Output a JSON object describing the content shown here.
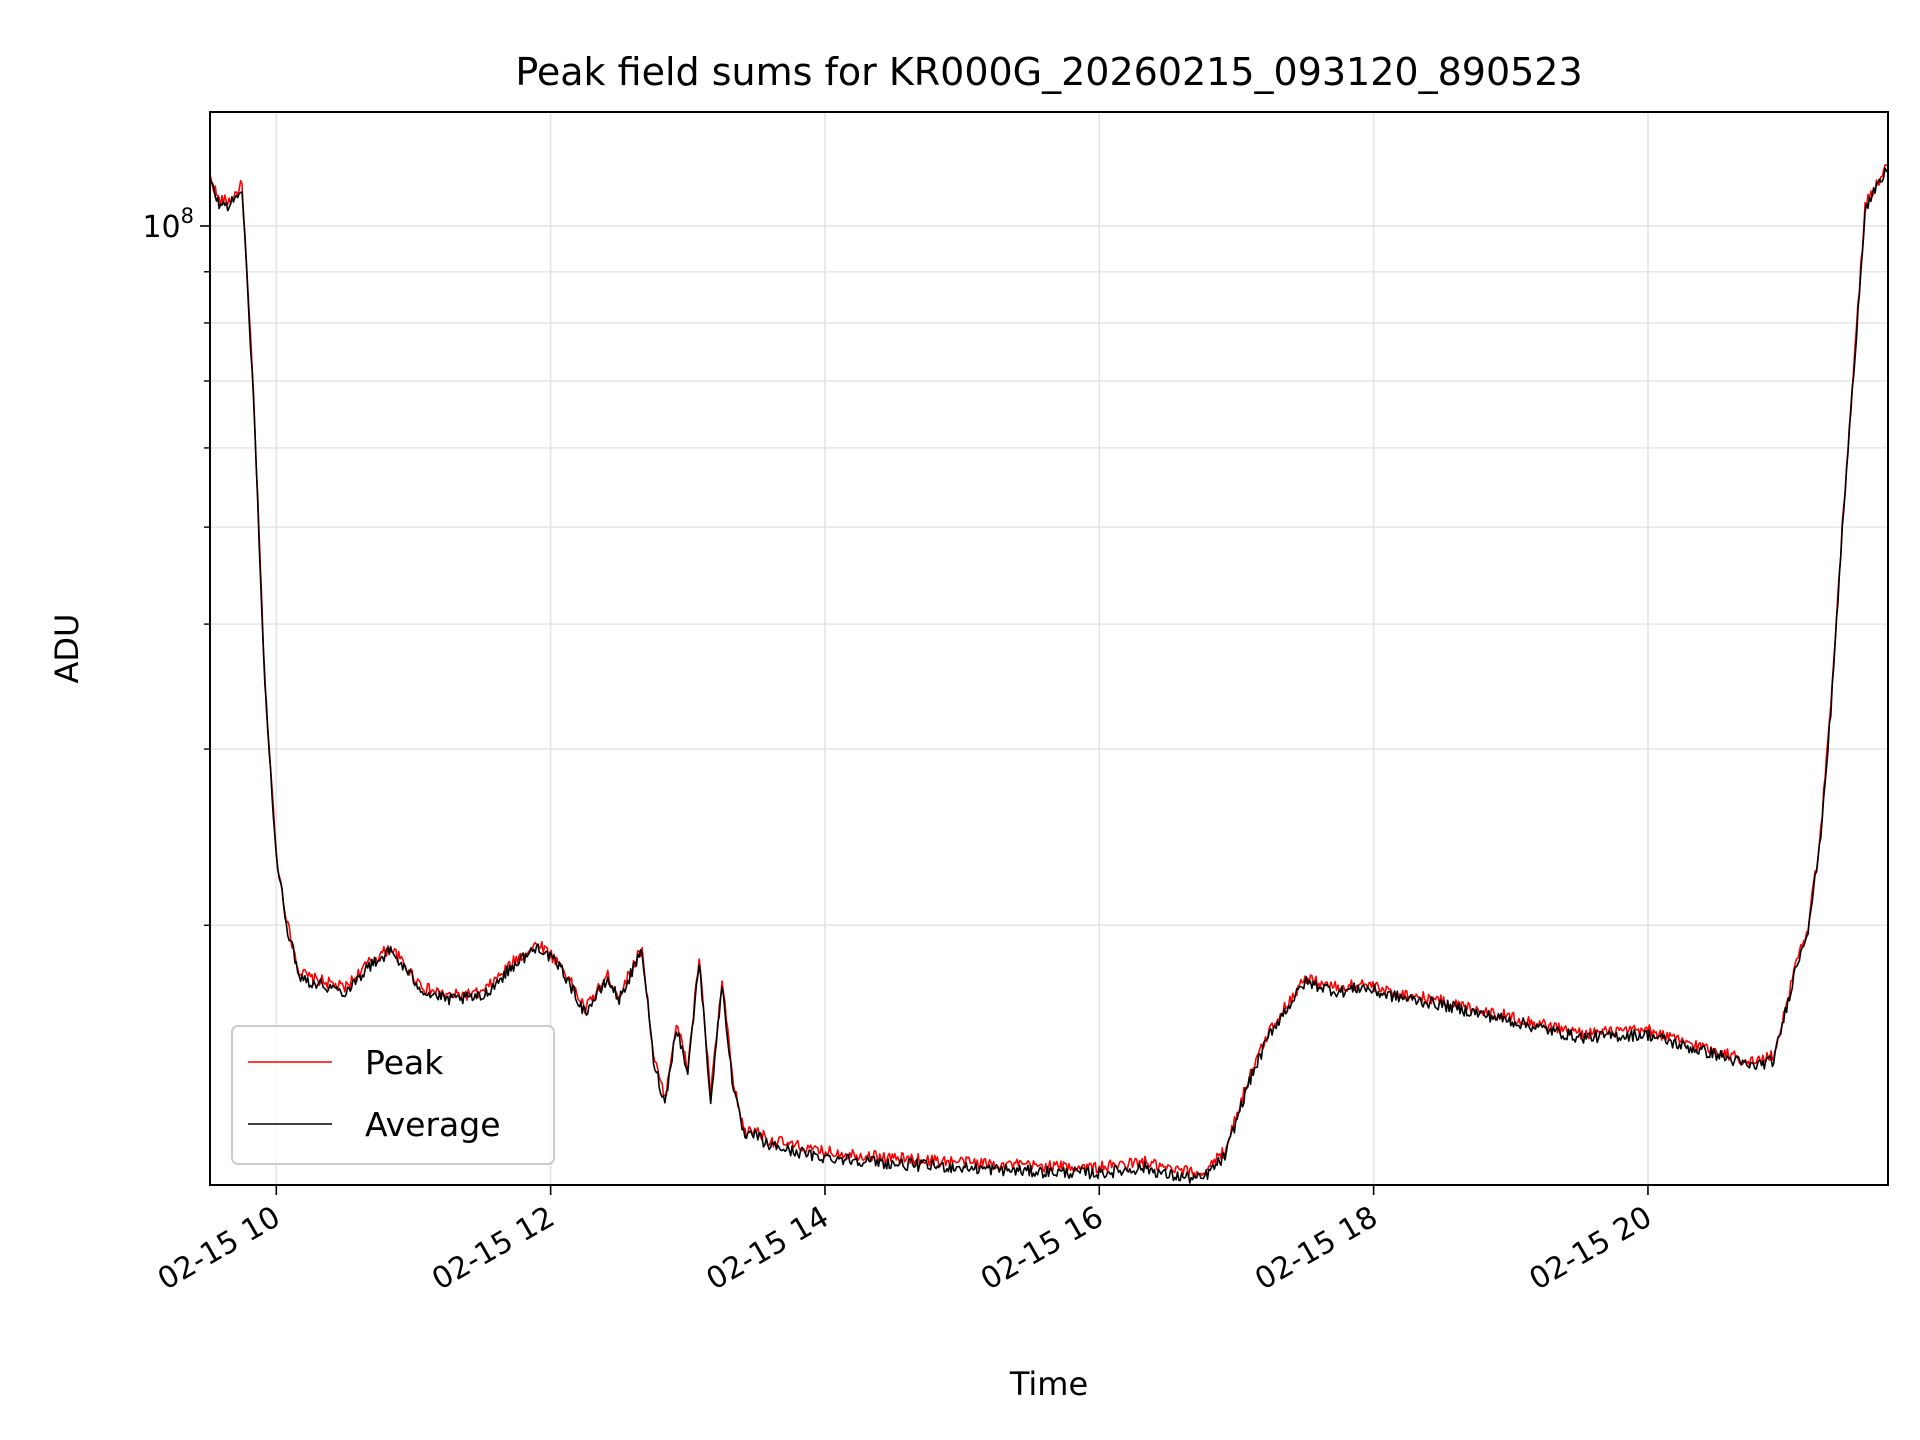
{
  "chart_data": {
    "type": "line",
    "title": "Peak field sums for KR000G_20260215_093120_890523",
    "xlabel": "Time",
    "ylabel": "ADU",
    "y_scale": "log",
    "grid": true,
    "legend_position": "lower-left",
    "xlim": [
      "02-15 09:31",
      "02-15 21:45"
    ],
    "ylim": [
      11000000,
      130000000
    ],
    "x_ticks": [
      "02-15 10",
      "02-15 12",
      "02-15 14",
      "02-15 16",
      "02-15 18",
      "02-15 20"
    ],
    "y_tick_major": {
      "value": 100000000,
      "base": "10",
      "exponent": "8"
    },
    "y_minor_ticks": [
      20000000,
      30000000,
      40000000,
      50000000,
      60000000,
      70000000,
      80000000,
      90000000
    ],
    "series": [
      {
        "name": "Peak",
        "color": "#ff0000",
        "x": [
          "02-15 09:31",
          "02-15 09:35",
          "02-15 09:40",
          "02-15 09:45",
          "02-15 09:50",
          "02-15 09:55",
          "02-15 10:00",
          "02-15 10:05",
          "02-15 10:10",
          "02-15 10:15",
          "02-15 10:20",
          "02-15 10:30",
          "02-15 10:40",
          "02-15 10:50",
          "02-15 11:00",
          "02-15 11:05",
          "02-15 11:15",
          "02-15 11:30",
          "02-15 11:45",
          "02-15 11:55",
          "02-15 12:05",
          "02-15 12:15",
          "02-15 12:25",
          "02-15 12:30",
          "02-15 12:35",
          "02-15 12:40",
          "02-15 12:45",
          "02-15 12:50",
          "02-15 12:55",
          "02-15 13:00",
          "02-15 13:05",
          "02-15 13:10",
          "02-15 13:15",
          "02-15 13:20",
          "02-15 13:25",
          "02-15 13:30",
          "02-15 13:35",
          "02-15 13:40",
          "02-15 13:45",
          "02-15 13:50",
          "02-15 13:55",
          "02-15 14:05",
          "02-15 14:15",
          "02-15 14:30",
          "02-15 15:00",
          "02-15 15:30",
          "02-15 16:00",
          "02-15 16:20",
          "02-15 16:30",
          "02-15 16:45",
          "02-15 16:55",
          "02-15 17:05",
          "02-15 17:15",
          "02-15 17:30",
          "02-15 17:45",
          "02-15 17:55",
          "02-15 18:05",
          "02-15 18:30",
          "02-15 19:00",
          "02-15 19:30",
          "02-15 20:00",
          "02-15 20:15",
          "02-15 20:30",
          "02-15 20:45",
          "02-15 20:55",
          "02-15 21:00",
          "02-15 21:05",
          "02-15 21:10",
          "02-15 21:15",
          "02-15 21:20",
          "02-15 21:25",
          "02-15 21:30",
          "02-15 21:35",
          "02-15 21:40",
          "02-15 21:45"
        ],
        "y": [
          112000000,
          106000000,
          106000000,
          110000000,
          68000000,
          35000000,
          23500000,
          20000000,
          18000000,
          17700000,
          17600000,
          17300000,
          18300000,
          19000000,
          17800000,
          17300000,
          17000000,
          17100000,
          18500000,
          19200000,
          18200000,
          16500000,
          17800000,
          17000000,
          18000000,
          19000000,
          14800000,
          13400000,
          16000000,
          14400000,
          18600000,
          13500000,
          17600000,
          13800000,
          12400000,
          12500000,
          12200000,
          12150000,
          12050000,
          12000000,
          11900000,
          11850000,
          11800000,
          11700000,
          11600000,
          11500000,
          11450000,
          11600000,
          11400000,
          11300000,
          11900000,
          14000000,
          15800000,
          17700000,
          17300000,
          17500000,
          17200000,
          16800000,
          16200000,
          15600000,
          15700000,
          15300000,
          15000000,
          14600000,
          14800000,
          16500000,
          18400000,
          20000000,
          24000000,
          33000000,
          50000000,
          72000000,
          105000000,
          110000000,
          115000000
        ]
      },
      {
        "name": "Average",
        "color": "#000000",
        "x": [
          "02-15 09:31",
          "02-15 09:35",
          "02-15 09:40",
          "02-15 09:45",
          "02-15 09:50",
          "02-15 09:55",
          "02-15 10:00",
          "02-15 10:05",
          "02-15 10:10",
          "02-15 10:15",
          "02-15 10:20",
          "02-15 10:30",
          "02-15 10:40",
          "02-15 10:50",
          "02-15 11:00",
          "02-15 11:05",
          "02-15 11:15",
          "02-15 11:30",
          "02-15 11:45",
          "02-15 11:55",
          "02-15 12:05",
          "02-15 12:15",
          "02-15 12:25",
          "02-15 12:30",
          "02-15 12:35",
          "02-15 12:40",
          "02-15 12:45",
          "02-15 12:50",
          "02-15 12:55",
          "02-15 13:00",
          "02-15 13:05",
          "02-15 13:10",
          "02-15 13:15",
          "02-15 13:20",
          "02-15 13:25",
          "02-15 13:30",
          "02-15 13:35",
          "02-15 13:40",
          "02-15 13:45",
          "02-15 13:50",
          "02-15 13:55",
          "02-15 14:05",
          "02-15 14:15",
          "02-15 14:30",
          "02-15 15:00",
          "02-15 15:30",
          "02-15 16:00",
          "02-15 16:20",
          "02-15 16:30",
          "02-15 16:45",
          "02-15 16:55",
          "02-15 17:05",
          "02-15 17:15",
          "02-15 17:30",
          "02-15 17:45",
          "02-15 17:55",
          "02-15 18:05",
          "02-15 18:30",
          "02-15 19:00",
          "02-15 19:30",
          "02-15 20:00",
          "02-15 20:15",
          "02-15 20:30",
          "02-15 20:45",
          "02-15 20:55",
          "02-15 21:00",
          "02-15 21:05",
          "02-15 21:10",
          "02-15 21:15",
          "02-15 21:20",
          "02-15 21:25",
          "02-15 21:30",
          "02-15 21:35",
          "02-15 21:40",
          "02-15 21:45"
        ],
        "y": [
          111000000,
          105000000,
          105000000,
          109000000,
          67500000,
          34800000,
          23300000,
          19800000,
          17850000,
          17550000,
          17450000,
          17150000,
          18150000,
          18850000,
          17650000,
          17150000,
          16850000,
          16950000,
          18350000,
          19050000,
          18050000,
          16350000,
          17650000,
          16850000,
          17850000,
          18850000,
          14650000,
          13250000,
          15850000,
          14250000,
          18450000,
          13350000,
          17450000,
          13650000,
          12250000,
          12350000,
          12050000,
          12000000,
          11900000,
          11850000,
          11750000,
          11700000,
          11650000,
          11550000,
          11450000,
          11350000,
          11300000,
          11450000,
          11250000,
          11150000,
          11750000,
          13850000,
          15650000,
          17550000,
          17150000,
          17350000,
          17050000,
          16650000,
          16050000,
          15450000,
          15550000,
          15150000,
          14850000,
          14450000,
          14650000,
          16350000,
          18250000,
          19850000,
          23800000,
          32700000,
          49600000,
          71500000,
          104000000,
          109000000,
          114000000
        ]
      }
    ]
  }
}
